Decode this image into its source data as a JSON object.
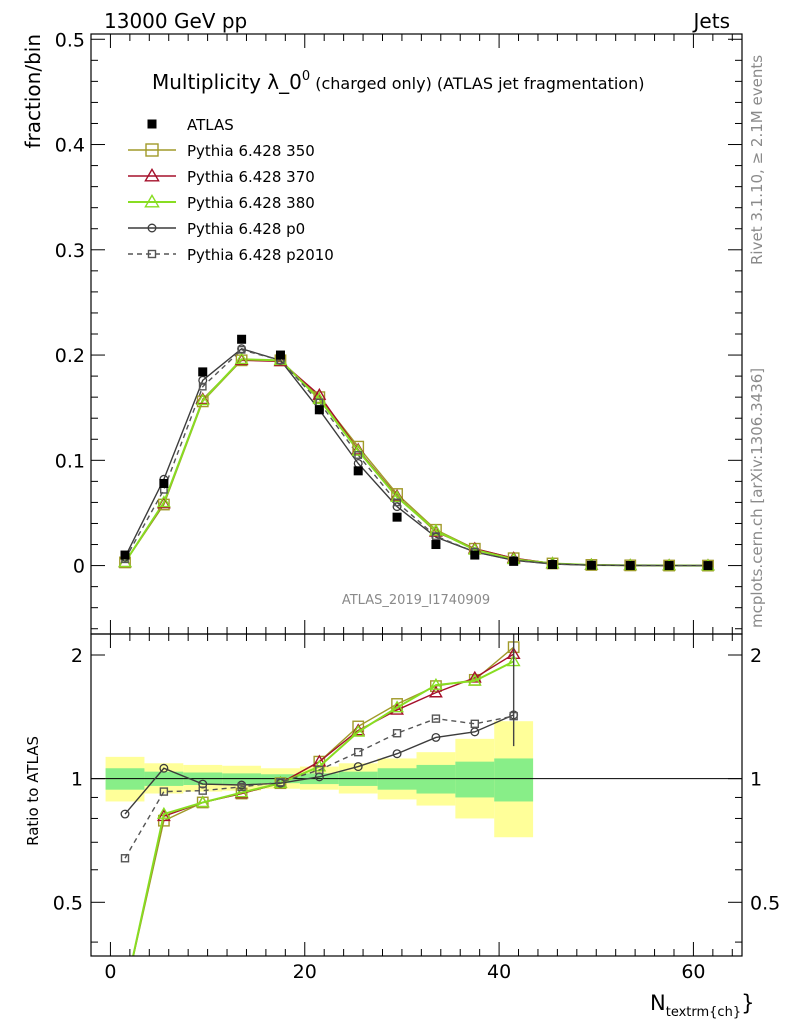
{
  "header": {
    "left": "13000 GeV pp",
    "right": "Jets"
  },
  "chart_data": [
    {
      "type": "line",
      "panel": "main",
      "title": "Multiplicity λ_0⁰ (charged only) (ATLAS jet fragmentation)",
      "title_main": "Multiplicity λ_0",
      "title_sup": "0",
      "title_small": " (charged only) (ATLAS jet fragmentation)",
      "ylabel": "fraction/bin",
      "ylim": [
        -0.065,
        0.505
      ],
      "xlim": [
        -2,
        65
      ],
      "yticks": [
        0,
        0.1,
        0.2,
        0.3,
        0.4,
        0.5
      ],
      "ytick_labels": [
        "0",
        "0.1",
        "0.2",
        "0.3",
        "0.4",
        "0.5"
      ],
      "legend_position": "top-left",
      "watermark": "ATLAS_2019_I1740909",
      "side_label_top": "Rivet 3.1.10, ≥ 2.1M events",
      "side_label_bottom": "mcplots.cern.ch [arXiv:1306.3436]",
      "x": [
        1.5,
        5.5,
        9.5,
        13.5,
        17.5,
        21.5,
        25.5,
        29.5,
        33.5,
        37.5,
        41.5,
        45.5,
        49.5,
        53.5,
        57.5,
        61.5
      ],
      "reference": {
        "name": "ATLAS",
        "values": [
          0.01,
          0.078,
          0.184,
          0.215,
          0.2,
          0.148,
          0.09,
          0.046,
          0.02,
          0.01,
          0.004,
          0.001,
          0.0003,
          0.0001,
          5e-05,
          0.0
        ]
      },
      "series": [
        {
          "name": "Pythia 6.428 350",
          "color": "#a19a29",
          "marker": "open-square",
          "dash": "solid",
          "values": [
            0.003,
            0.058,
            0.156,
            0.195,
            0.195,
            0.16,
            0.113,
            0.068,
            0.034,
            0.016,
            0.007,
            0.002,
            0.0006,
            0.0002,
            5e-05,
            0.0
          ]
        },
        {
          "name": "Pythia 6.428 370",
          "color": "#a5102b",
          "marker": "open-triangle",
          "dash": "solid",
          "values": [
            0.003,
            0.059,
            0.158,
            0.195,
            0.194,
            0.162,
            0.11,
            0.066,
            0.032,
            0.016,
            0.007,
            0.002,
            0.0006,
            0.0002,
            5e-05,
            0.0
          ]
        },
        {
          "name": "Pythia 6.428 380",
          "color": "#88dd22",
          "marker": "open-triangle",
          "dash": "solid",
          "values": [
            0.003,
            0.06,
            0.157,
            0.196,
            0.195,
            0.158,
            0.109,
            0.065,
            0.033,
            0.015,
            0.006,
            0.002,
            0.0006,
            0.0002,
            5e-05,
            0.0
          ]
        },
        {
          "name": "Pythia 6.428 p0",
          "color": "#3c3c3c",
          "marker": "open-circle",
          "dash": "solid",
          "values": [
            0.008,
            0.082,
            0.176,
            0.206,
            0.195,
            0.148,
            0.097,
            0.056,
            0.027,
            0.013,
            0.005,
            0.0015,
            0.0004,
            0.0001,
            3e-05,
            0.0
          ]
        },
        {
          "name": "Pythia 6.428 p2010",
          "color": "#555555",
          "marker": "open-square",
          "dash": "dashed",
          "values": [
            0.006,
            0.072,
            0.17,
            0.205,
            0.195,
            0.155,
            0.105,
            0.06,
            0.028,
            0.013,
            0.005,
            0.0015,
            0.0004,
            0.0001,
            3e-05,
            0.0
          ]
        }
      ]
    },
    {
      "type": "line",
      "panel": "ratio",
      "ylabel": "Ratio to ATLAS",
      "xlabel": "N",
      "xlabel_sub": "textrm{ch}",
      "xlabel_close": "}",
      "ylim": [
        0.37,
        2.25
      ],
      "ylog": true,
      "xlim": [
        -2,
        65
      ],
      "xticks": [
        0,
        20,
        40,
        60
      ],
      "xtick_labels": [
        "0",
        "20",
        "40",
        "60"
      ],
      "yticks": [
        0.5,
        1,
        2
      ],
      "ytick_labels": [
        "0.5",
        "1",
        "2"
      ],
      "x": [
        1.5,
        5.5,
        9.5,
        13.5,
        17.5,
        21.5,
        25.5,
        29.5,
        33.5,
        37.5,
        41.5
      ],
      "bin_edges": [
        -0.5,
        3.5,
        7.5,
        11.5,
        15.5,
        19.5,
        23.5,
        27.5,
        31.5,
        35.5,
        39.5,
        43.5
      ],
      "band_inner": [
        [
          0.94,
          1.06
        ],
        [
          0.96,
          1.04
        ],
        [
          0.965,
          1.035
        ],
        [
          0.97,
          1.03
        ],
        [
          0.975,
          1.025
        ],
        [
          0.97,
          1.03
        ],
        [
          0.96,
          1.04
        ],
        [
          0.94,
          1.06
        ],
        [
          0.92,
          1.08
        ],
        [
          0.9,
          1.1
        ],
        [
          0.88,
          1.12
        ]
      ],
      "band_outer": [
        [
          0.88,
          1.13
        ],
        [
          0.92,
          1.09
        ],
        [
          0.93,
          1.08
        ],
        [
          0.935,
          1.075
        ],
        [
          0.945,
          1.06
        ],
        [
          0.94,
          1.07
        ],
        [
          0.92,
          1.09
        ],
        [
          0.89,
          1.12
        ],
        [
          0.86,
          1.16
        ],
        [
          0.8,
          1.25
        ],
        [
          0.72,
          1.38
        ]
      ],
      "series": [
        {
          "name": "Pythia 6.428 350",
          "color": "#a19a29",
          "marker": "open-square",
          "dash": "solid",
          "values": [
            0.3,
            0.79,
            0.875,
            0.92,
            0.975,
            1.1,
            1.34,
            1.52,
            1.68,
            1.74,
            2.09
          ]
        },
        {
          "name": "Pythia 6.428 370",
          "color": "#a5102b",
          "marker": "open-triangle",
          "dash": "solid",
          "values": [
            0.3,
            0.81,
            0.875,
            0.92,
            0.975,
            1.1,
            1.31,
            1.47,
            1.62,
            1.76,
            2.01
          ]
        },
        {
          "name": "Pythia 6.428 380",
          "color": "#88dd22",
          "marker": "open-triangle",
          "dash": "solid",
          "values": [
            0.3,
            0.82,
            0.875,
            0.925,
            0.975,
            1.07,
            1.3,
            1.49,
            1.69,
            1.73,
            1.93
          ]
        },
        {
          "name": "Pythia 6.428 p0",
          "color": "#3c3c3c",
          "marker": "open-circle",
          "dash": "solid",
          "values": [
            0.82,
            1.06,
            0.97,
            0.965,
            0.975,
            1.01,
            1.07,
            1.15,
            1.26,
            1.3,
            1.43
          ]
        },
        {
          "name": "Pythia 6.428 p2010",
          "color": "#555555",
          "marker": "open-square",
          "dash": "dashed",
          "values": [
            0.64,
            0.93,
            0.935,
            0.955,
            0.98,
            1.05,
            1.16,
            1.29,
            1.4,
            1.36,
            1.42
          ]
        }
      ]
    }
  ]
}
